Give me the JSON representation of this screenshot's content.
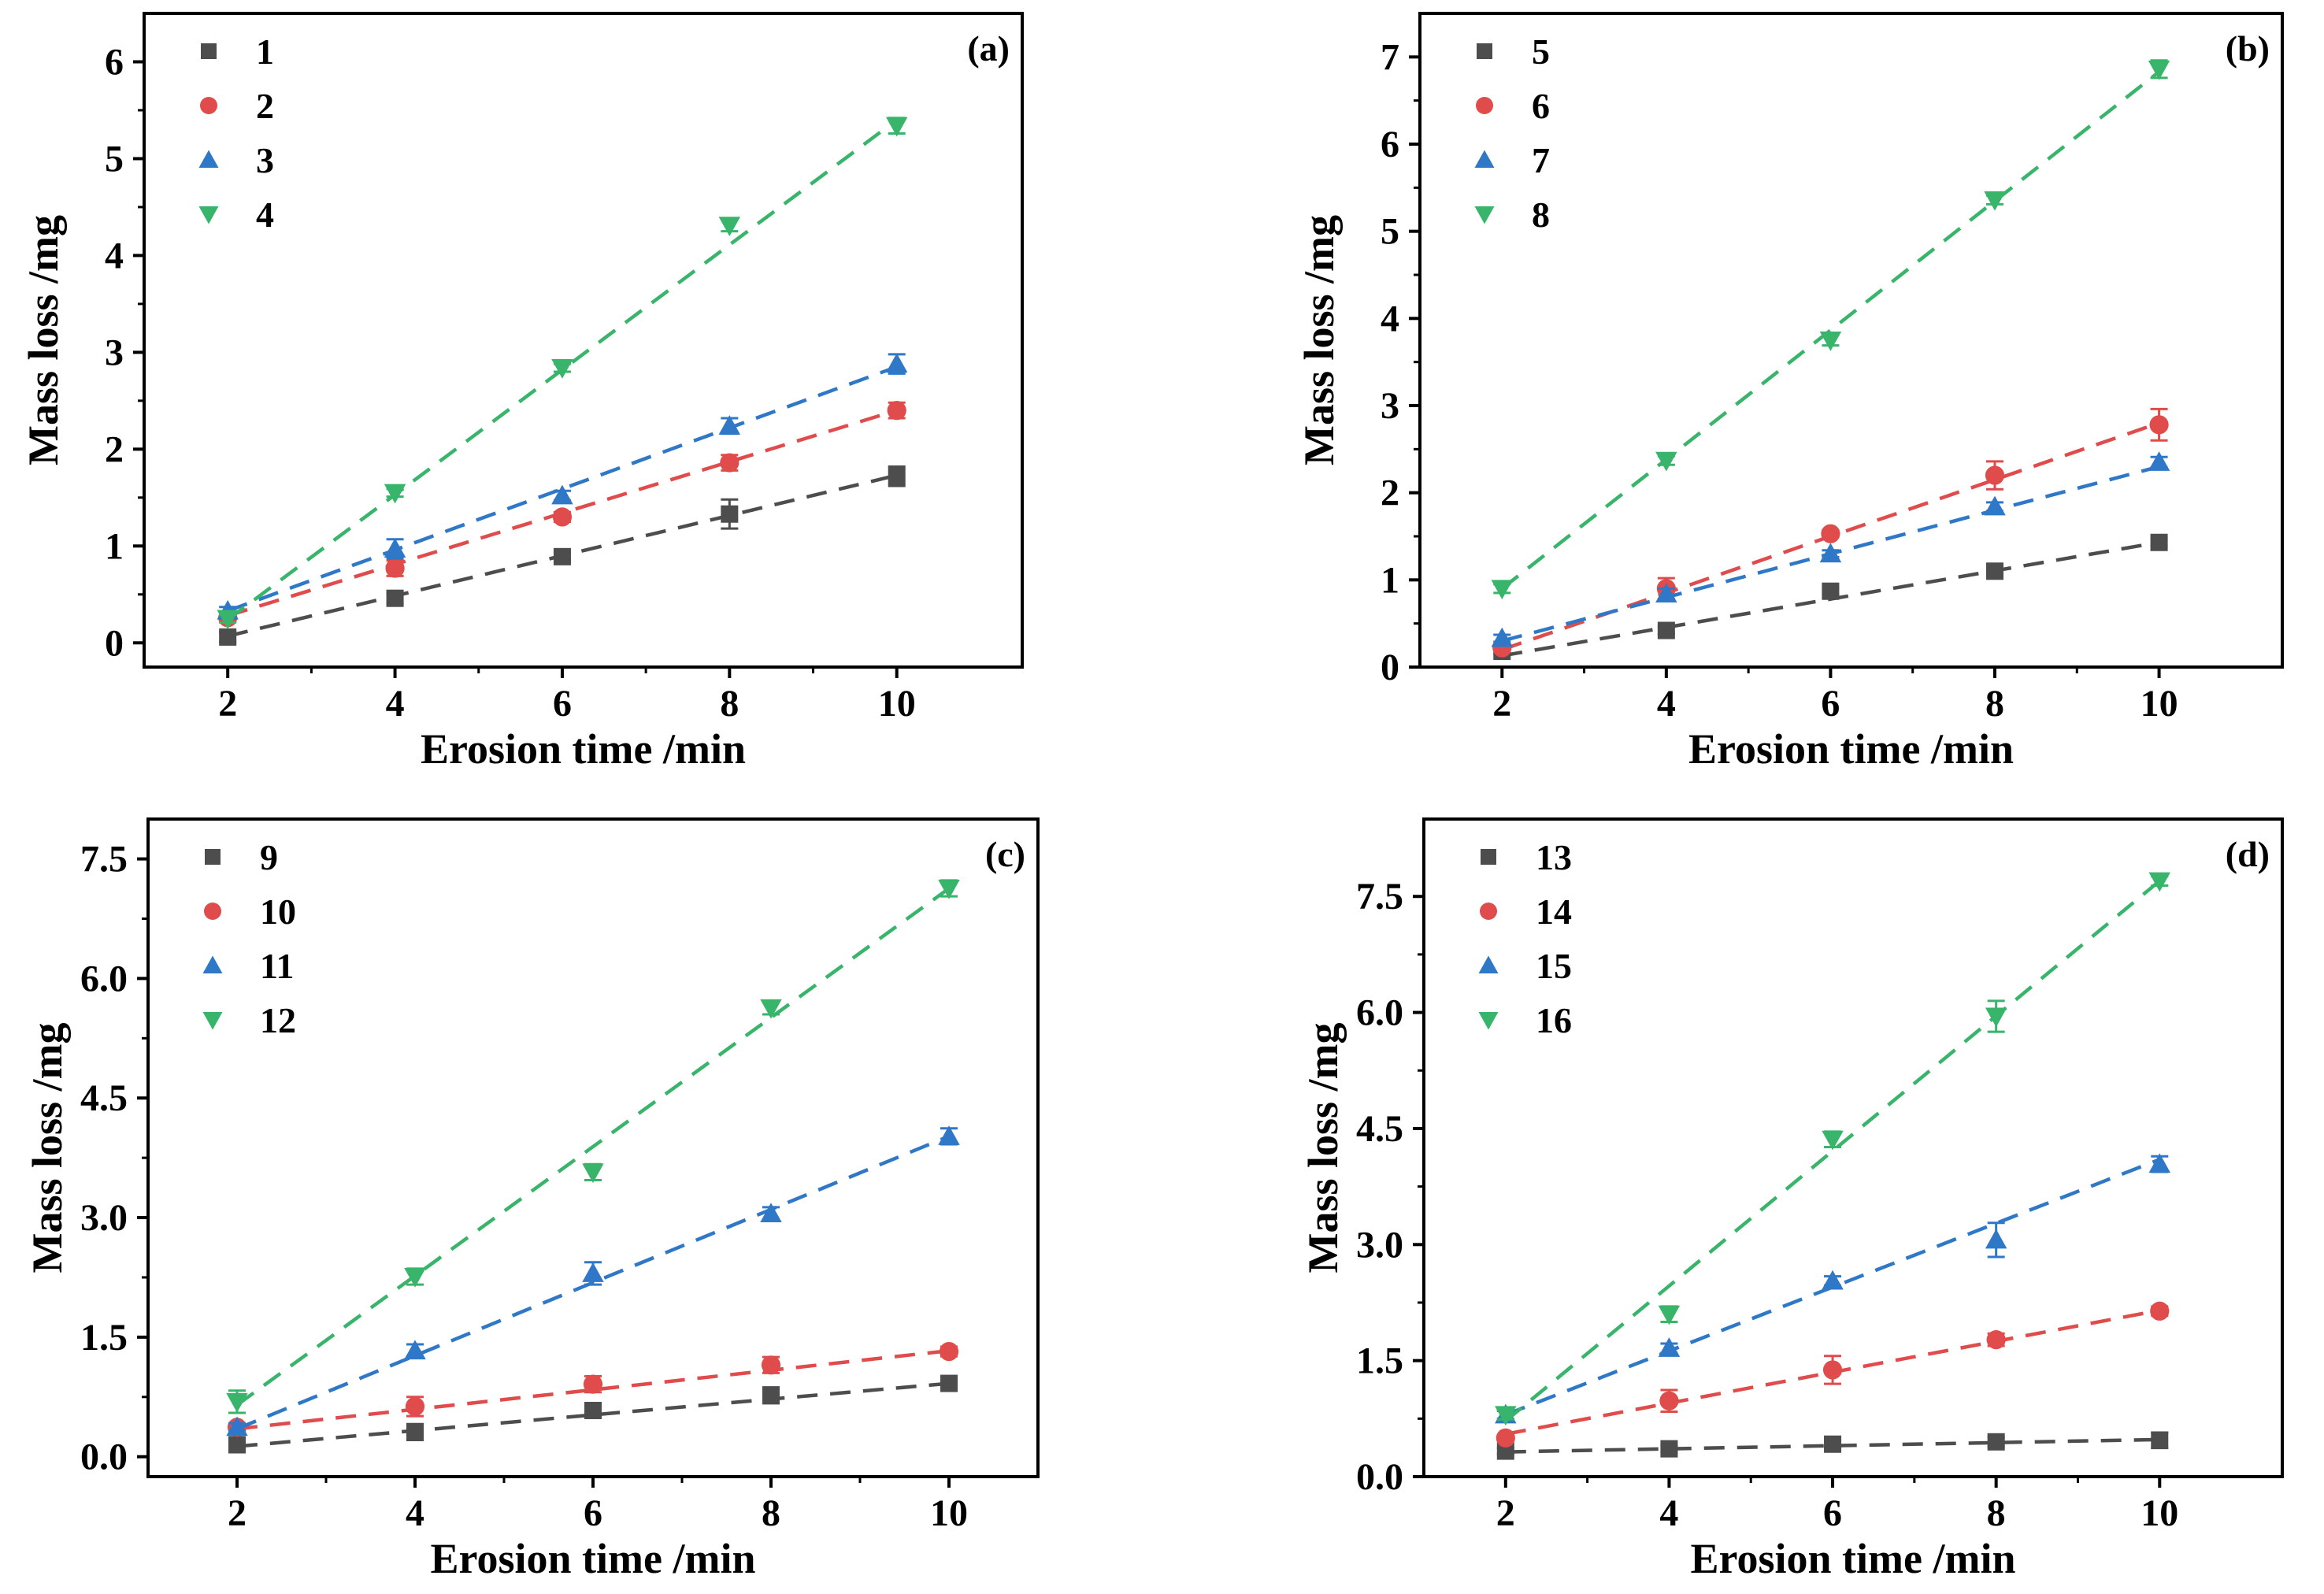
{
  "chart_data": [
    {
      "type": "scatter",
      "panel_label": "(a)",
      "xlabel": "Erosion time /min",
      "ylabel": "Mass loss /mg",
      "x": [
        2,
        4,
        6,
        8,
        10
      ],
      "xticks": [
        "2",
        "4",
        "6",
        "8",
        "10"
      ],
      "xlim": [
        1,
        11.5
      ],
      "ylim": [
        -0.25,
        6.5
      ],
      "yticks": [
        0,
        1,
        2,
        3,
        4,
        5,
        6
      ],
      "ytick_labels": [
        "0",
        "1",
        "2",
        "3",
        "4",
        "5",
        "6"
      ],
      "legend": "top-left",
      "series": [
        {
          "name": "1",
          "marker": "square",
          "color": "#4d4d4d",
          "values": [
            0.06,
            0.46,
            0.89,
            1.33,
            1.72
          ],
          "errors": [
            0.05,
            0.05,
            0.04,
            0.15,
            0.1
          ],
          "fit": [
            0.07,
            1.73
          ]
        },
        {
          "name": "2",
          "marker": "circle",
          "color": "#e04b4b",
          "values": [
            0.26,
            0.77,
            1.3,
            1.86,
            2.4
          ],
          "errors": [
            0.04,
            0.08,
            0.05,
            0.08,
            0.08
          ],
          "fit": [
            0.28,
            2.4
          ]
        },
        {
          "name": "3",
          "marker": "triangle-up",
          "color": "#2f78c8",
          "values": [
            0.33,
            0.97,
            1.52,
            2.24,
            2.88
          ],
          "errors": [
            0.04,
            0.1,
            0.05,
            0.08,
            0.1
          ],
          "fit": [
            0.33,
            2.85
          ]
        },
        {
          "name": "4",
          "marker": "triangle-down",
          "color": "#39b56b",
          "values": [
            0.25,
            1.55,
            2.84,
            4.31,
            5.34
          ],
          "errors": [
            0.04,
            0.04,
            0.04,
            0.06,
            0.08
          ],
          "fit": [
            0.24,
            5.4
          ]
        }
      ]
    },
    {
      "type": "scatter",
      "panel_label": "(b)",
      "xlabel": "Erosion time /min",
      "ylabel": "Mass loss /mg",
      "x": [
        2,
        4,
        6,
        8,
        10
      ],
      "xticks": [
        "2",
        "4",
        "6",
        "8",
        "10"
      ],
      "xlim": [
        1,
        11.5
      ],
      "ylim": [
        0,
        7.5
      ],
      "yticks": [
        0,
        1,
        2,
        3,
        4,
        5,
        6,
        7
      ],
      "ytick_labels": [
        "0",
        "1",
        "2",
        "3",
        "4",
        "5",
        "6",
        "7"
      ],
      "legend": "top-left",
      "series": [
        {
          "name": "5",
          "marker": "square",
          "color": "#4d4d4d",
          "values": [
            0.18,
            0.42,
            0.87,
            1.1,
            1.43
          ],
          "errors": [
            0.03,
            0.04,
            0.04,
            0.06,
            0.04
          ],
          "fit": [
            0.13,
            1.43
          ]
        },
        {
          "name": "6",
          "marker": "circle",
          "color": "#e04b4b",
          "values": [
            0.22,
            0.9,
            1.53,
            2.2,
            2.78
          ],
          "errors": [
            0.04,
            0.12,
            0.04,
            0.16,
            0.18
          ],
          "fit": [
            0.2,
            2.8
          ]
        },
        {
          "name": "7",
          "marker": "triangle-up",
          "color": "#2f78c8",
          "values": [
            0.33,
            0.84,
            1.3,
            1.84,
            2.35
          ],
          "errors": [
            0.04,
            0.06,
            0.04,
            0.05,
            0.06
          ],
          "fit": [
            0.3,
            2.3
          ]
        },
        {
          "name": "8",
          "marker": "triangle-down",
          "color": "#39b56b",
          "values": [
            0.9,
            2.37,
            3.75,
            5.36,
            6.86
          ],
          "errors": [
            0.05,
            0.05,
            0.06,
            0.05,
            0.1
          ],
          "fit": [
            0.9,
            6.83
          ]
        }
      ]
    },
    {
      "type": "scatter",
      "panel_label": "(c)",
      "xlabel": "Erosion time /min",
      "ylabel": "Mass loss /mg",
      "x": [
        2,
        4,
        6,
        8,
        10
      ],
      "xticks": [
        "2",
        "4",
        "6",
        "8",
        "10"
      ],
      "xlim": [
        1,
        11
      ],
      "ylim": [
        -0.25,
        8.0
      ],
      "yticks": [
        0,
        1.5,
        3.0,
        4.5,
        6.0,
        7.5
      ],
      "ytick_labels": [
        "0.0",
        "1.5",
        "3.0",
        "4.5",
        "6.0",
        "7.5"
      ],
      "legend": "top-left",
      "series": [
        {
          "name": "9",
          "marker": "square",
          "color": "#4d4d4d",
          "values": [
            0.15,
            0.31,
            0.58,
            0.77,
            0.92
          ],
          "errors": [
            0.04,
            0.1,
            0.06,
            0.1,
            0.05
          ],
          "fit": [
            0.13,
            0.92
          ]
        },
        {
          "name": "10",
          "marker": "circle",
          "color": "#e04b4b",
          "values": [
            0.37,
            0.63,
            0.91,
            1.15,
            1.32
          ],
          "errors": [
            0.05,
            0.12,
            0.1,
            0.1,
            0.06
          ],
          "fit": [
            0.35,
            1.33
          ]
        },
        {
          "name": "11",
          "marker": "triangle-up",
          "color": "#2f78c8",
          "values": [
            0.37,
            1.33,
            2.3,
            3.05,
            4.02
          ],
          "errors": [
            0.05,
            0.08,
            0.14,
            0.08,
            0.1
          ],
          "fit": [
            0.35,
            4.02
          ]
        },
        {
          "name": "12",
          "marker": "triangle-down",
          "color": "#39b56b",
          "values": [
            0.69,
            2.26,
            3.57,
            5.63,
            7.13
          ],
          "errors": [
            0.14,
            0.1,
            0.1,
            0.08,
            0.1
          ],
          "fit": [
            0.65,
            7.13
          ]
        }
      ]
    },
    {
      "type": "scatter",
      "panel_label": "(d)",
      "xlabel": "Erosion time /min",
      "ylabel": "Mass loss /mg",
      "x": [
        2,
        4,
        6,
        8,
        10
      ],
      "xticks": [
        "2",
        "4",
        "6",
        "8",
        "10"
      ],
      "xlim": [
        1,
        11.5
      ],
      "ylim": [
        0,
        8.5
      ],
      "yticks": [
        0,
        1.5,
        3.0,
        4.5,
        6.0,
        7.5
      ],
      "ytick_labels": [
        "0.0",
        "1.5",
        "3.0",
        "4.5",
        "6.0",
        "7.5"
      ],
      "legend": "top-left",
      "series": [
        {
          "name": "13",
          "marker": "square",
          "color": "#4d4d4d",
          "values": [
            0.33,
            0.36,
            0.42,
            0.45,
            0.47
          ],
          "errors": [
            0.04,
            0.04,
            0.05,
            0.06,
            0.1
          ],
          "fit": [
            0.32,
            0.48
          ]
        },
        {
          "name": "14",
          "marker": "circle",
          "color": "#e04b4b",
          "values": [
            0.5,
            0.98,
            1.38,
            1.77,
            2.14
          ],
          "errors": [
            0.04,
            0.14,
            0.18,
            0.08,
            0.06
          ],
          "fit": [
            0.55,
            2.15
          ]
        },
        {
          "name": "15",
          "marker": "triangle-up",
          "color": "#2f78c8",
          "values": [
            0.8,
            1.66,
            2.53,
            3.06,
            4.04
          ],
          "errors": [
            0.05,
            0.06,
            0.06,
            0.22,
            0.1
          ],
          "fit": [
            0.8,
            4.1
          ]
        },
        {
          "name": "16",
          "marker": "triangle-down",
          "color": "#39b56b",
          "values": [
            0.8,
            2.1,
            4.36,
            5.95,
            7.7
          ],
          "errors": [
            0.06,
            0.1,
            0.1,
            0.2,
            0.06
          ],
          "fit": [
            0.72,
            7.7
          ]
        }
      ]
    }
  ]
}
